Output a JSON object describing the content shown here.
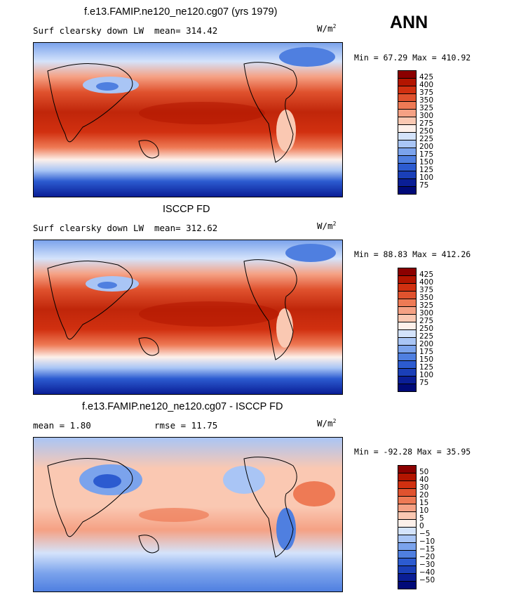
{
  "header": {
    "season": "ANN"
  },
  "units_label": "W/m",
  "units_sup": "2",
  "panels": [
    {
      "title": "f.e13.FAMIP.ne120_ne120.cg07 (yrs 1979)",
      "left_label": "Surf clearsky down LW",
      "stat_label": "mean= 314.42",
      "minmax": "Min =  67.29 Max = 410.92"
    },
    {
      "title": "ISCCP FD",
      "left_label": "Surf clearsky down LW",
      "stat_label": "mean= 312.62",
      "minmax": "Min =  88.83 Max = 412.26"
    },
    {
      "title": "f.e13.FAMIP.ne120_ne120.cg07 - ISCCP FD",
      "left_label": "mean =   1.80",
      "stat_label": "rmse =  11.75",
      "minmax": "Min = -92.28 Max =  35.95"
    }
  ],
  "chart_data": [
    {
      "type": "heatmap",
      "title": "f.e13.FAMIP.ne120_ne120.cg07 (yrs 1979)",
      "variable": "Surf clearsky down LW",
      "units": "W/m2",
      "mean": 314.42,
      "min": 67.29,
      "max": 410.92,
      "colorbar_levels": [
        "425",
        "400",
        "375",
        "350",
        "325",
        "300",
        "275",
        "250",
        "225",
        "200",
        "175",
        "150",
        "125",
        "100",
        "75"
      ],
      "colors": [
        "#8b0000",
        "#b31500",
        "#d13010",
        "#e0522e",
        "#ee7a55",
        "#f5a184",
        "#fac8b2",
        "#fdf0ea",
        "#d4e3fb",
        "#a9c5f5",
        "#7ba3ec",
        "#4f7fe0",
        "#2c5bd0",
        "#1a3fb8",
        "#0a1e96",
        "#000a78"
      ]
    },
    {
      "type": "heatmap",
      "title": "ISCCP FD",
      "variable": "Surf clearsky down LW",
      "units": "W/m2",
      "mean": 312.62,
      "min": 88.83,
      "max": 412.26,
      "colorbar_levels": [
        "425",
        "400",
        "375",
        "350",
        "325",
        "300",
        "275",
        "250",
        "225",
        "200",
        "175",
        "150",
        "125",
        "100",
        "75"
      ],
      "colors": [
        "#8b0000",
        "#b31500",
        "#d13010",
        "#e0522e",
        "#ee7a55",
        "#f5a184",
        "#fac8b2",
        "#fdf0ea",
        "#d4e3fb",
        "#a9c5f5",
        "#7ba3ec",
        "#4f7fe0",
        "#2c5bd0",
        "#1a3fb8",
        "#0a1e96",
        "#000a78"
      ]
    },
    {
      "type": "heatmap",
      "title": "f.e13.FAMIP.ne120_ne120.cg07 - ISCCP FD",
      "variable": "difference",
      "units": "W/m2",
      "mean": 1.8,
      "rmse": 11.75,
      "min": -92.28,
      "max": 35.95,
      "colorbar_levels": [
        "50",
        "40",
        "30",
        "20",
        "15",
        "10",
        "5",
        "0",
        "−5",
        "−10",
        "−15",
        "−20",
        "−30",
        "−40",
        "−50"
      ],
      "colors": [
        "#8b0000",
        "#b31500",
        "#d13010",
        "#e0522e",
        "#ee7a55",
        "#f5a184",
        "#fac8b2",
        "#fdf0ea",
        "#d4e3fb",
        "#a9c5f5",
        "#7ba3ec",
        "#4f7fe0",
        "#2c5bd0",
        "#1a3fb8",
        "#0a1e96",
        "#000a78"
      ]
    }
  ]
}
